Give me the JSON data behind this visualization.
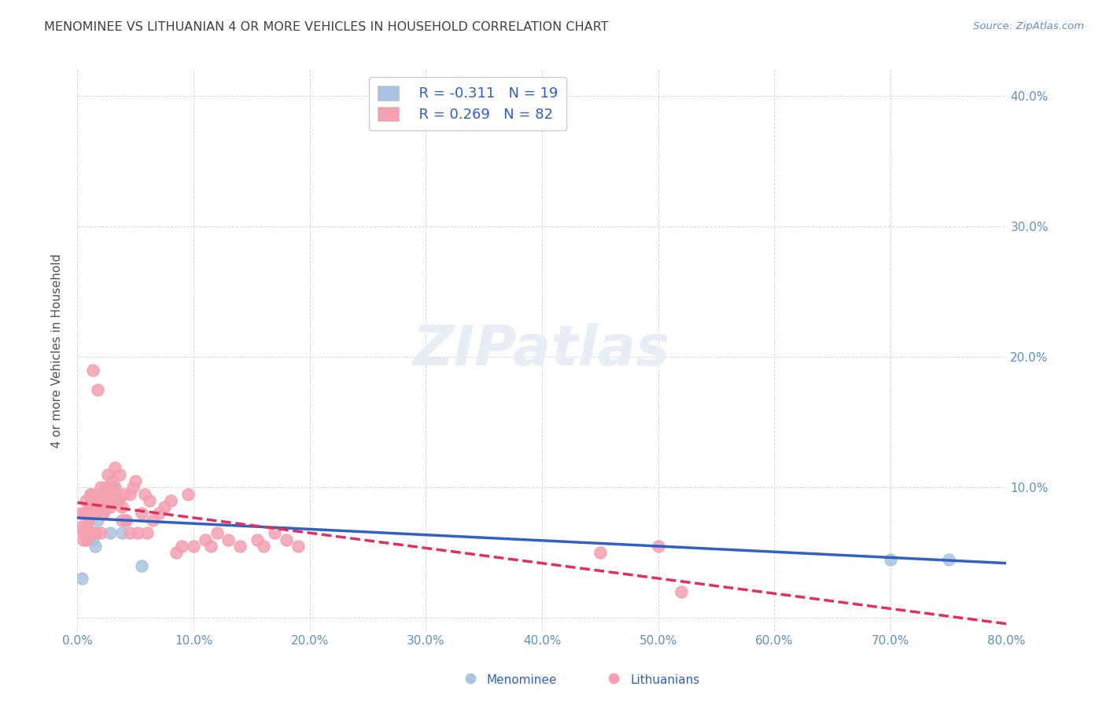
{
  "title": "MENOMINEE VS LITHUANIAN 4 OR MORE VEHICLES IN HOUSEHOLD CORRELATION CHART",
  "source": "Source: ZipAtlas.com",
  "xlabel": "",
  "ylabel": "4 or more Vehicles in Household",
  "legend_labels": [
    "Menominee",
    "Lithuanians"
  ],
  "menominee_color": "#a8c4e0",
  "lithuanian_color": "#f4a0b0",
  "menominee_line_color": "#3060c0",
  "lithuanian_line_color": "#e03060",
  "legend_r_menominee": "R = -0.311",
  "legend_n_menominee": "N = 19",
  "legend_r_lithuanian": "R = 0.269",
  "legend_n_lithuanian": "N = 82",
  "xlim": [
    0.0,
    0.8
  ],
  "ylim": [
    -0.01,
    0.42
  ],
  "xticks": [
    0.0,
    0.1,
    0.2,
    0.3,
    0.4,
    0.5,
    0.6,
    0.7,
    0.8
  ],
  "yticks": [
    0.0,
    0.1,
    0.2,
    0.3,
    0.4
  ],
  "xticklabels": [
    "0.0%",
    "10.0%",
    "20.0%",
    "30.0%",
    "40.0%",
    "50.0%",
    "60.0%",
    "70.0%",
    "80.0%"
  ],
  "yticklabels_right": [
    "",
    "10.0%",
    "20.0%",
    "30.0%",
    "40.0%"
  ],
  "menominee_x": [
    0.004,
    0.011,
    0.013,
    0.015,
    0.017,
    0.02,
    0.022,
    0.023,
    0.025,
    0.026,
    0.028,
    0.03,
    0.032,
    0.035,
    0.038,
    0.042,
    0.055,
    0.7,
    0.75
  ],
  "menominee_y": [
    0.03,
    0.095,
    0.06,
    0.055,
    0.075,
    0.095,
    0.08,
    0.09,
    0.085,
    0.095,
    0.065,
    0.1,
    0.09,
    0.09,
    0.065,
    0.075,
    0.04,
    0.045,
    0.045
  ],
  "lithuanian_x": [
    0.003,
    0.004,
    0.005,
    0.005,
    0.006,
    0.007,
    0.007,
    0.008,
    0.008,
    0.009,
    0.009,
    0.01,
    0.01,
    0.011,
    0.011,
    0.012,
    0.012,
    0.013,
    0.013,
    0.014,
    0.014,
    0.015,
    0.015,
    0.016,
    0.016,
    0.017,
    0.018,
    0.018,
    0.019,
    0.02,
    0.02,
    0.021,
    0.022,
    0.022,
    0.023,
    0.025,
    0.025,
    0.026,
    0.028,
    0.028,
    0.03,
    0.03,
    0.032,
    0.032,
    0.033,
    0.033,
    0.035,
    0.036,
    0.038,
    0.038,
    0.04,
    0.042,
    0.045,
    0.045,
    0.048,
    0.05,
    0.052,
    0.055,
    0.058,
    0.06,
    0.062,
    0.065,
    0.07,
    0.075,
    0.08,
    0.085,
    0.09,
    0.095,
    0.1,
    0.11,
    0.115,
    0.12,
    0.13,
    0.14,
    0.155,
    0.16,
    0.17,
    0.18,
    0.19,
    0.45,
    0.5,
    0.52
  ],
  "lithuanian_y": [
    0.08,
    0.07,
    0.065,
    0.06,
    0.08,
    0.09,
    0.08,
    0.07,
    0.06,
    0.075,
    0.065,
    0.085,
    0.08,
    0.095,
    0.065,
    0.09,
    0.08,
    0.19,
    0.085,
    0.065,
    0.095,
    0.08,
    0.065,
    0.085,
    0.08,
    0.175,
    0.095,
    0.085,
    0.08,
    0.065,
    0.1,
    0.09,
    0.08,
    0.085,
    0.095,
    0.1,
    0.09,
    0.11,
    0.095,
    0.085,
    0.105,
    0.095,
    0.115,
    0.1,
    0.095,
    0.09,
    0.09,
    0.11,
    0.085,
    0.075,
    0.095,
    0.075,
    0.095,
    0.065,
    0.1,
    0.105,
    0.065,
    0.08,
    0.095,
    0.065,
    0.09,
    0.075,
    0.08,
    0.085,
    0.09,
    0.05,
    0.055,
    0.095,
    0.055,
    0.06,
    0.055,
    0.065,
    0.06,
    0.055,
    0.06,
    0.055,
    0.065,
    0.06,
    0.055,
    0.05,
    0.055,
    0.02
  ],
  "background_color": "#ffffff",
  "grid_color": "#d0d0d0",
  "title_color": "#404040",
  "tick_color": "#6090c0",
  "watermark_text": "ZIPatlas",
  "watermark_color": "#e8eef5"
}
